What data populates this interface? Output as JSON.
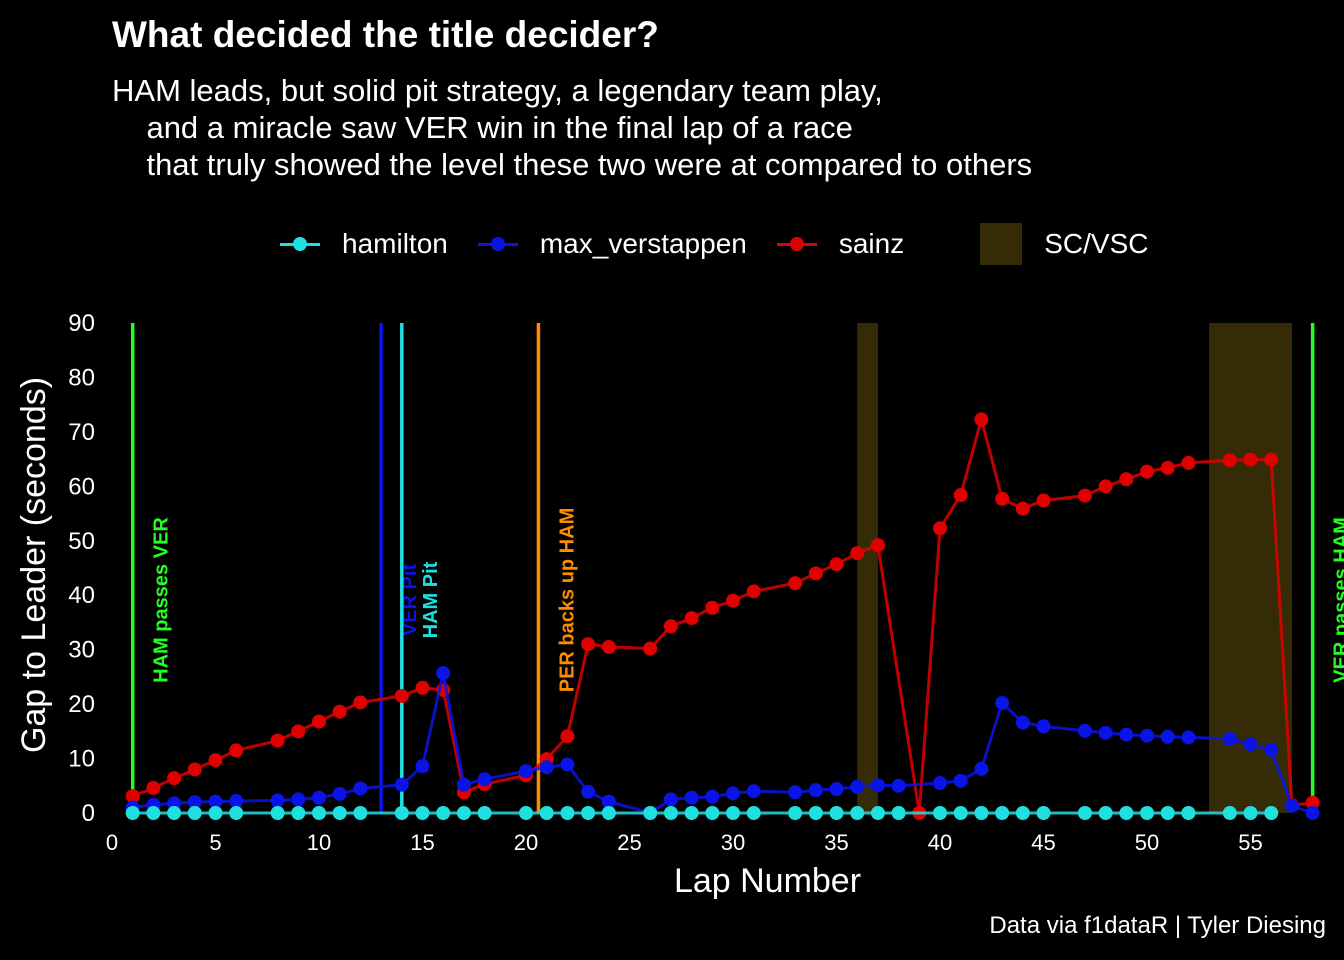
{
  "title": "What decided the title decider?",
  "subtitle": "HAM leads, but solid pit strategy, a legendary team play,\n    and a miracle saw VER win in the final lap of a race\n    that truly showed the level these two were at compared to others",
  "caption": "Data via f1dataR | Tyler Diesing",
  "chart_data": {
    "type": "line",
    "xlabel": "Lap Number",
    "ylabel": "Gap to Leader (seconds)",
    "xlim": [
      0,
      58.5
    ],
    "ylim": [
      0,
      90
    ],
    "xticks": [
      0,
      5,
      10,
      15,
      20,
      25,
      30,
      35,
      40,
      45,
      50,
      55
    ],
    "yticks": [
      0,
      10,
      20,
      30,
      40,
      50,
      60,
      70,
      80,
      90
    ],
    "grid": false,
    "legend_position": "top",
    "legend": [
      {
        "label": "hamilton",
        "color": "#1ee0e0"
      },
      {
        "label": "max_verstappen",
        "color": "#0a14e6"
      },
      {
        "label": "sainz",
        "color": "#e00000"
      }
    ],
    "sc_legend_label": "SC/VSC",
    "sc_color": "#352c07",
    "sc_periods": [
      [
        36,
        37
      ],
      [
        53,
        57
      ]
    ],
    "series": [
      {
        "name": "hamilton",
        "color": "#1ee0e0",
        "x": [
          1,
          2,
          3,
          4,
          5,
          6,
          8,
          9,
          10,
          11,
          12,
          14,
          15,
          16,
          17,
          18,
          20,
          21,
          22,
          23,
          24,
          26,
          27,
          28,
          29,
          30,
          31,
          33,
          34,
          35,
          36,
          37,
          38,
          40,
          41,
          42,
          43,
          44,
          45,
          47,
          48,
          49,
          50,
          51,
          52,
          54,
          55,
          56
        ],
        "y": [
          0,
          0,
          0,
          0,
          0,
          0,
          0,
          0,
          0,
          0,
          0,
          0,
          0,
          0,
          0,
          0,
          0,
          0,
          0,
          0,
          0,
          0,
          0,
          0,
          0,
          0,
          0,
          0,
          0,
          0,
          0,
          0,
          0,
          0,
          0,
          0,
          0,
          0,
          0,
          0,
          0,
          0,
          0,
          0,
          0,
          0,
          0,
          0
        ]
      },
      {
        "name": "max_verstappen",
        "color": "#0a14e6",
        "x": [
          1,
          2,
          3,
          4,
          5,
          6,
          8,
          9,
          10,
          11,
          12,
          14,
          15,
          16,
          17,
          18,
          20,
          21,
          22,
          23,
          24,
          26,
          27,
          28,
          29,
          30,
          31,
          33,
          34,
          35,
          36,
          37,
          38,
          40,
          41,
          42,
          43,
          44,
          45,
          47,
          48,
          49,
          50,
          51,
          52,
          54,
          55,
          56,
          57,
          58
        ],
        "y": [
          1,
          1.5,
          1.8,
          2,
          2.1,
          2.2,
          2.3,
          2.5,
          2.8,
          3.5,
          4.5,
          5.2,
          8.6,
          25.7,
          5.2,
          6.2,
          7.7,
          8.4,
          8.9,
          3.9,
          2.1,
          0,
          2.5,
          2.8,
          3,
          3.6,
          4,
          3.8,
          4.2,
          4.4,
          4.8,
          5.1,
          5,
          5.5,
          5.9,
          8.1,
          20.2,
          16.6,
          15.9,
          15.1,
          14.7,
          14.4,
          14.2,
          14,
          13.9,
          13.6,
          12.6,
          11.6,
          1.3,
          0
        ]
      },
      {
        "name": "sainz",
        "color": "#e00000",
        "x": [
          1,
          2,
          3,
          4,
          5,
          6,
          8,
          9,
          10,
          11,
          12,
          14,
          15,
          16,
          17,
          18,
          20,
          21,
          22,
          23,
          24,
          26,
          27,
          28,
          29,
          30,
          31,
          33,
          34,
          35,
          36,
          37,
          39,
          40,
          41,
          42,
          43,
          44,
          45,
          47,
          48,
          49,
          50,
          51,
          52,
          54,
          55,
          56,
          57,
          58
        ],
        "y": [
          3.1,
          4.6,
          6.4,
          8,
          9.7,
          11.5,
          13.3,
          15,
          16.8,
          18.6,
          20.3,
          21.5,
          23,
          22.6,
          3.8,
          5.3,
          6.9,
          9.9,
          14.1,
          31,
          30.5,
          30.2,
          34.3,
          35.8,
          37.7,
          39,
          40.7,
          42.2,
          44,
          45.7,
          47.7,
          49.2,
          0,
          52.3,
          58.4,
          72.3,
          57.7,
          55.9,
          57.4,
          58.3,
          60,
          61.3,
          62.7,
          63.4,
          64.3,
          64.8,
          64.9,
          64.9,
          1.4,
          1.9
        ]
      }
    ],
    "annotations": [
      {
        "x": 1,
        "label": "HAM passes VER",
        "color": "#22ff22"
      },
      {
        "x": 13,
        "label": "VER Pit",
        "color": "#0a14e6"
      },
      {
        "x": 14,
        "label": "HAM Pit",
        "color": "#1ee0e0"
      },
      {
        "x": 20.6,
        "label": "PER backs up HAM",
        "color": "#ff8c00"
      },
      {
        "x": 58,
        "label": "VER passes HAM",
        "color": "#22ff22"
      }
    ]
  }
}
